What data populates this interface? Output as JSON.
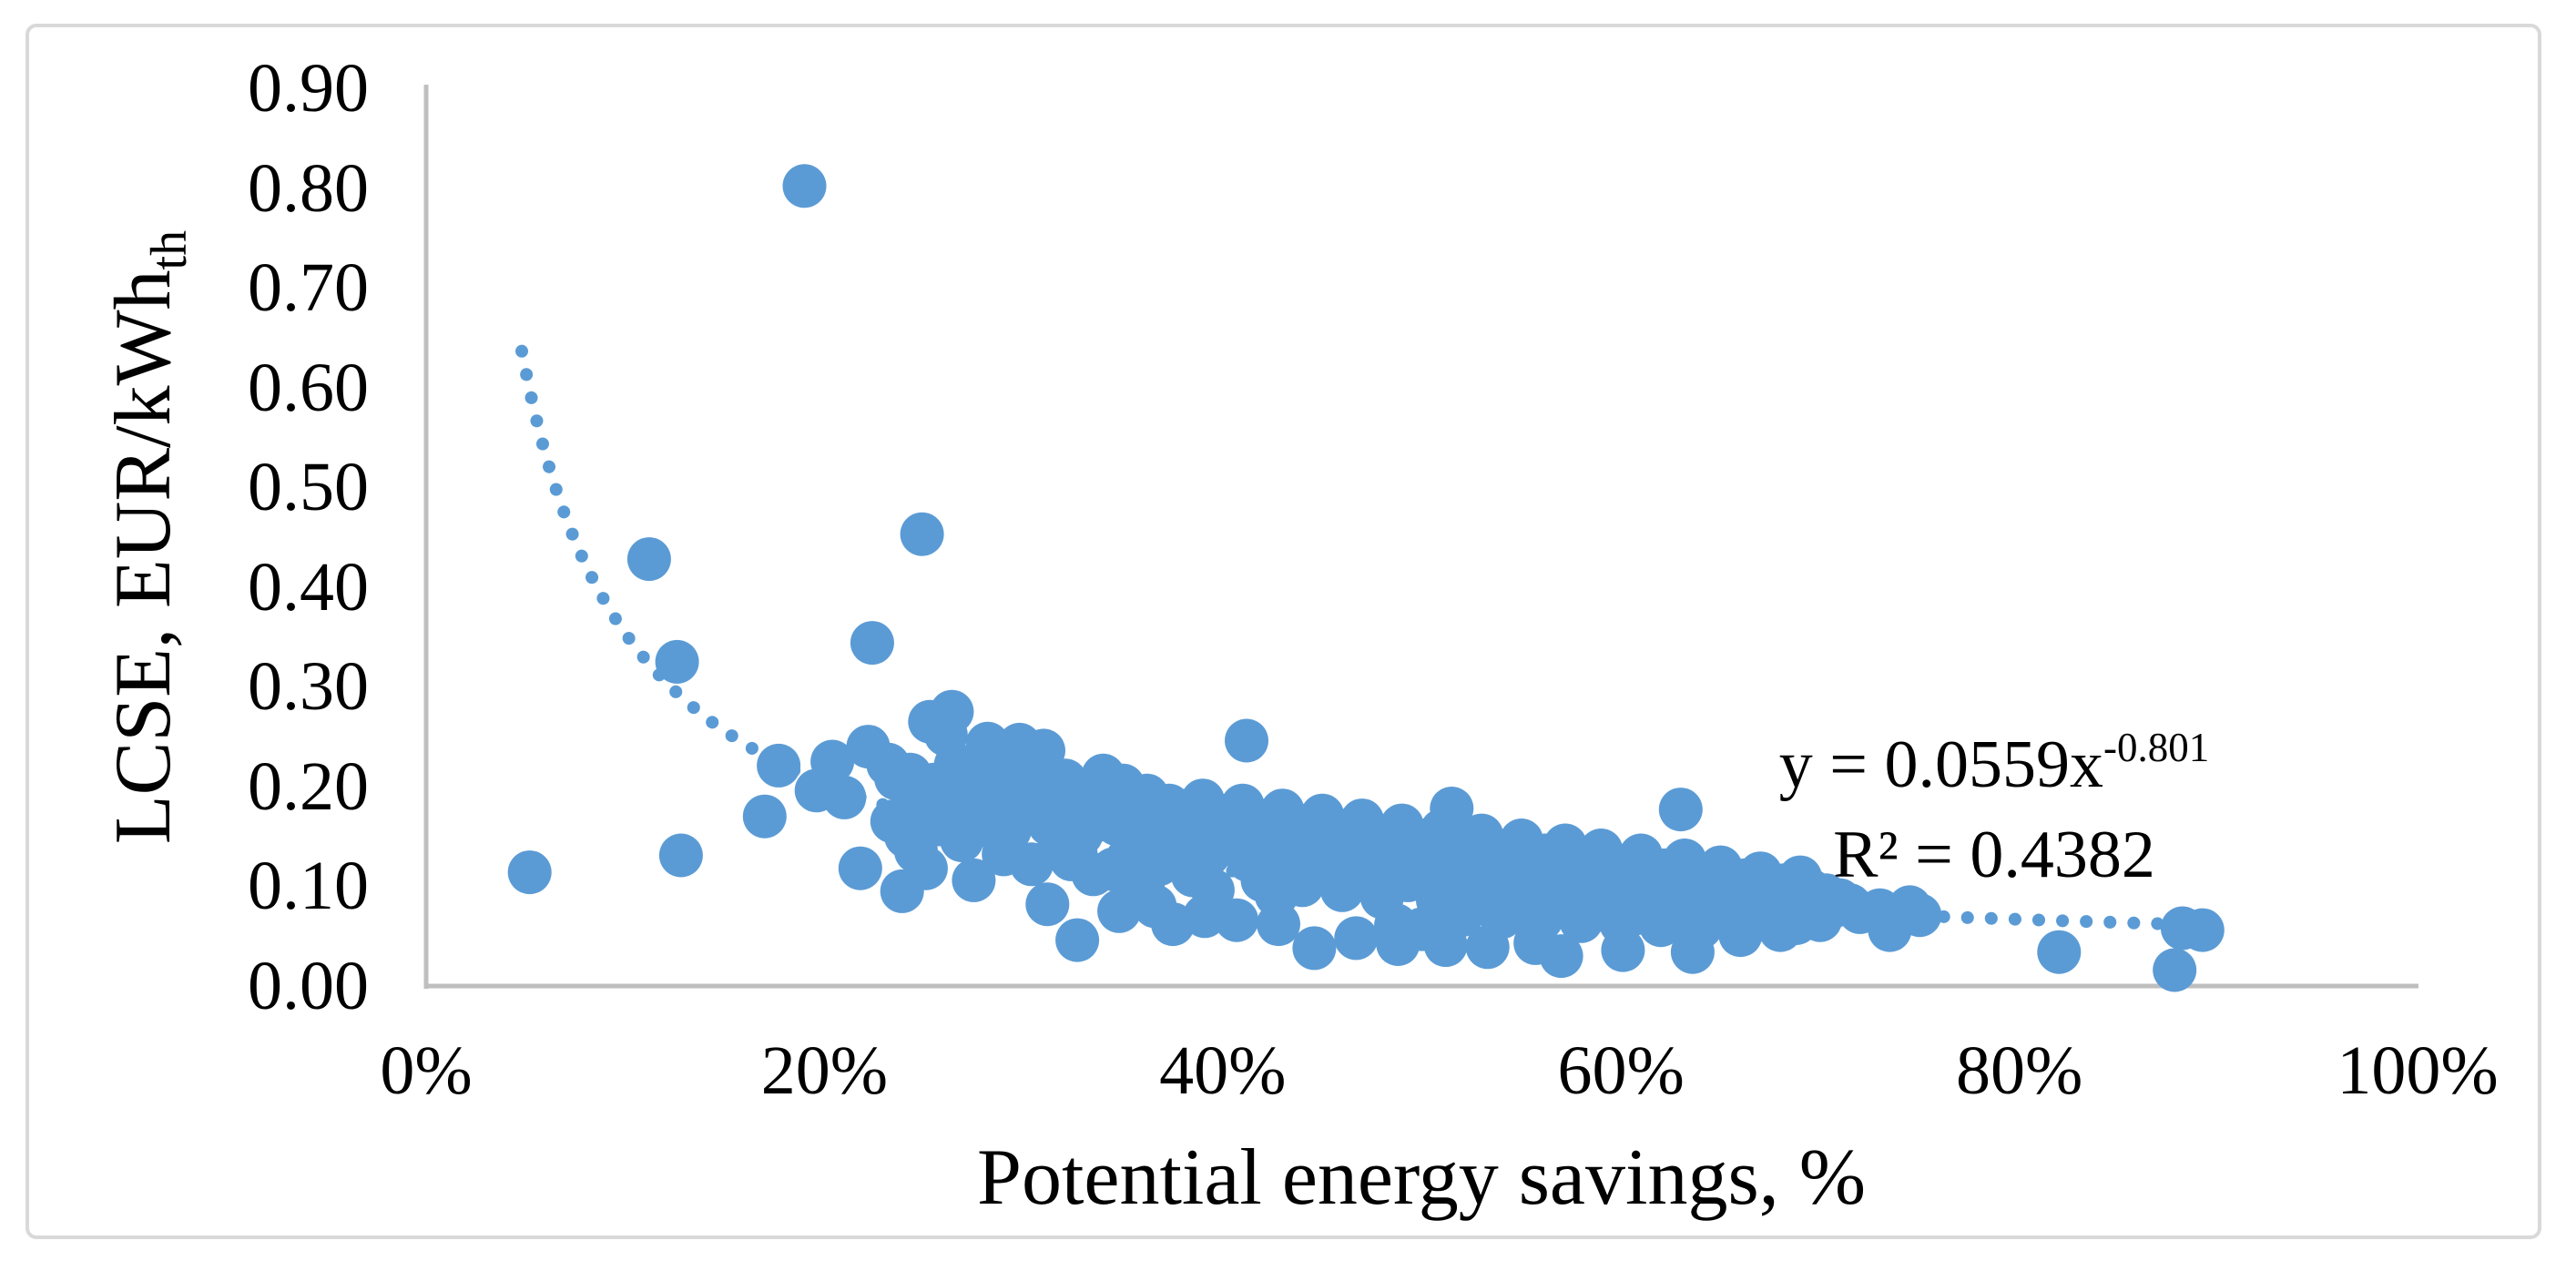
{
  "chart_data": {
    "type": "scatter",
    "title": "",
    "xlabel": "Potential energy savings, %",
    "ylabel": "LCSE, EUR/kWh_th",
    "ylabel_main": "LCSE, EUR/kWh",
    "ylabel_subscript": "th",
    "xlim": [
      0,
      100
    ],
    "ylim": [
      0.0,
      0.9
    ],
    "grid": false,
    "legend": "none",
    "x_tick_labels": [
      "0%",
      "20%",
      "40%",
      "60%",
      "80%",
      "100%"
    ],
    "x_tick_values": [
      0,
      20,
      40,
      60,
      80,
      100
    ],
    "y_tick_labels": [
      "0.00",
      "0.10",
      "0.20",
      "0.30",
      "0.40",
      "0.50",
      "0.60",
      "0.70",
      "0.80",
      "0.90"
    ],
    "y_tick_values": [
      0.0,
      0.1,
      0.2,
      0.3,
      0.4,
      0.5,
      0.6,
      0.7,
      0.8,
      0.9
    ],
    "annotation": {
      "equation_base": "y = 0.0559x",
      "equation_exponent": "-0.801",
      "r_squared_text": "R² = 0.4382"
    },
    "trendline": {
      "type": "power",
      "coefficient": 0.0559,
      "exponent": -0.801,
      "r_squared": 0.4382,
      "x_start_pct": 4.8,
      "x_end_pct": 88.0,
      "style": "dotted"
    },
    "points": [
      [
        5.2,
        0.114
      ],
      [
        11.2,
        0.428
      ],
      [
        12.6,
        0.325
      ],
      [
        12.8,
        0.131
      ],
      [
        17.0,
        0.17
      ],
      [
        17.7,
        0.221
      ],
      [
        19.0,
        0.802
      ],
      [
        19.6,
        0.196
      ],
      [
        20.4,
        0.225
      ],
      [
        21.0,
        0.189
      ],
      [
        21.8,
        0.118
      ],
      [
        22.2,
        0.24
      ],
      [
        22.4,
        0.344
      ],
      [
        23.2,
        0.222
      ],
      [
        23.4,
        0.165
      ],
      [
        23.6,
        0.208
      ],
      [
        23.9,
        0.095
      ],
      [
        24.1,
        0.15
      ],
      [
        24.3,
        0.212
      ],
      [
        24.6,
        0.135
      ],
      [
        24.7,
        0.182
      ],
      [
        24.9,
        0.453
      ],
      [
        25.0,
        0.175
      ],
      [
        25.1,
        0.118
      ],
      [
        25.3,
        0.265
      ],
      [
        25.5,
        0.202
      ],
      [
        25.7,
        0.162
      ],
      [
        25.9,
        0.185
      ],
      [
        26.1,
        0.252
      ],
      [
        26.3,
        0.16
      ],
      [
        26.4,
        0.275
      ],
      [
        26.6,
        0.222
      ],
      [
        26.9,
        0.146
      ],
      [
        27.0,
        0.17
      ],
      [
        27.2,
        0.192
      ],
      [
        27.5,
        0.106
      ],
      [
        27.7,
        0.212
      ],
      [
        27.9,
        0.195
      ],
      [
        28.0,
        0.168
      ],
      [
        28.2,
        0.243
      ],
      [
        28.5,
        0.206
      ],
      [
        28.7,
        0.155
      ],
      [
        28.8,
        0.177
      ],
      [
        29.0,
        0.132
      ],
      [
        29.3,
        0.156
      ],
      [
        29.5,
        0.175
      ],
      [
        29.6,
        0.221
      ],
      [
        29.8,
        0.242
      ],
      [
        29.9,
        0.192
      ],
      [
        30.2,
        0.212
      ],
      [
        30.4,
        0.122
      ],
      [
        30.7,
        0.182
      ],
      [
        31.0,
        0.236
      ],
      [
        31.2,
        0.082
      ],
      [
        31.3,
        0.162
      ],
      [
        31.5,
        0.197
      ],
      [
        31.8,
        0.142
      ],
      [
        32.1,
        0.206
      ],
      [
        32.4,
        0.127
      ],
      [
        32.6,
        0.176
      ],
      [
        32.7,
        0.046
      ],
      [
        32.9,
        0.152
      ],
      [
        33.2,
        0.191
      ],
      [
        33.5,
        0.112
      ],
      [
        33.7,
        0.166
      ],
      [
        34.0,
        0.211
      ],
      [
        34.2,
        0.186
      ],
      [
        34.5,
        0.117
      ],
      [
        34.7,
        0.162
      ],
      [
        34.8,
        0.075
      ],
      [
        35.0,
        0.201
      ],
      [
        35.2,
        0.127
      ],
      [
        35.5,
        0.142
      ],
      [
        35.8,
        0.176
      ],
      [
        36.0,
        0.097
      ],
      [
        36.2,
        0.191
      ],
      [
        36.5,
        0.167
      ],
      [
        36.6,
        0.08
      ],
      [
        36.8,
        0.122
      ],
      [
        37.0,
        0.146
      ],
      [
        37.3,
        0.181
      ],
      [
        37.5,
        0.062
      ],
      [
        37.7,
        0.157
      ],
      [
        38.0,
        0.136
      ],
      [
        38.2,
        0.176
      ],
      [
        38.5,
        0.111
      ],
      [
        38.7,
        0.151
      ],
      [
        39.0,
        0.186
      ],
      [
        39.1,
        0.07
      ],
      [
        39.3,
        0.132
      ],
      [
        39.5,
        0.096
      ],
      [
        39.7,
        0.161
      ],
      [
        40.0,
        0.143
      ],
      [
        40.2,
        0.171
      ],
      [
        40.5,
        0.146
      ],
      [
        40.7,
        0.066
      ],
      [
        41.0,
        0.181
      ],
      [
        41.2,
        0.246
      ],
      [
        41.3,
        0.126
      ],
      [
        41.7,
        0.156
      ],
      [
        42.0,
        0.106
      ],
      [
        42.2,
        0.166
      ],
      [
        42.5,
        0.141
      ],
      [
        42.7,
        0.091
      ],
      [
        42.8,
        0.062
      ],
      [
        43.0,
        0.176
      ],
      [
        43.3,
        0.121
      ],
      [
        43.5,
        0.151
      ],
      [
        43.8,
        0.131
      ],
      [
        44.0,
        0.101
      ],
      [
        44.2,
        0.161
      ],
      [
        44.5,
        0.136
      ],
      [
        44.6,
        0.038
      ],
      [
        45.0,
        0.171
      ],
      [
        45.3,
        0.116
      ],
      [
        45.5,
        0.146
      ],
      [
        45.8,
        0.126
      ],
      [
        46.0,
        0.096
      ],
      [
        46.2,
        0.156
      ],
      [
        46.5,
        0.131
      ],
      [
        46.7,
        0.048
      ],
      [
        47.0,
        0.166
      ],
      [
        47.3,
        0.111
      ],
      [
        47.5,
        0.141
      ],
      [
        47.8,
        0.121
      ],
      [
        48.0,
        0.089
      ],
      [
        48.2,
        0.151
      ],
      [
        48.5,
        0.126
      ],
      [
        48.7,
        0.061
      ],
      [
        48.8,
        0.042
      ],
      [
        49.0,
        0.161
      ],
      [
        49.3,
        0.106
      ],
      [
        49.5,
        0.136
      ],
      [
        49.8,
        0.116
      ],
      [
        50.0,
        0.057
      ],
      [
        50.2,
        0.146
      ],
      [
        50.5,
        0.121
      ],
      [
        50.8,
        0.086
      ],
      [
        51.0,
        0.156
      ],
      [
        51.2,
        0.041
      ],
      [
        51.3,
        0.101
      ],
      [
        51.5,
        0.178
      ],
      [
        51.8,
        0.132
      ],
      [
        52.0,
        0.071
      ],
      [
        52.2,
        0.141
      ],
      [
        52.5,
        0.116
      ],
      [
        52.8,
        0.083
      ],
      [
        53.0,
        0.151
      ],
      [
        53.3,
        0.039
      ],
      [
        53.4,
        0.099
      ],
      [
        53.5,
        0.128
      ],
      [
        53.8,
        0.111
      ],
      [
        54.0,
        0.069
      ],
      [
        54.2,
        0.136
      ],
      [
        54.5,
        0.113
      ],
      [
        54.8,
        0.081
      ],
      [
        55.0,
        0.146
      ],
      [
        55.3,
        0.096
      ],
      [
        55.5,
        0.126
      ],
      [
        55.7,
        0.043
      ],
      [
        55.8,
        0.109
      ],
      [
        56.0,
        0.067
      ],
      [
        56.2,
        0.131
      ],
      [
        56.5,
        0.108
      ],
      [
        56.8,
        0.079
      ],
      [
        57.0,
        0.03
      ],
      [
        57.2,
        0.141
      ],
      [
        57.5,
        0.093
      ],
      [
        57.8,
        0.121
      ],
      [
        58.0,
        0.065
      ],
      [
        58.2,
        0.126
      ],
      [
        58.5,
        0.106
      ],
      [
        58.8,
        0.076
      ],
      [
        59.0,
        0.136
      ],
      [
        59.3,
        0.091
      ],
      [
        59.5,
        0.116
      ],
      [
        59.8,
        0.101
      ],
      [
        60.0,
        0.063
      ],
      [
        60.1,
        0.036
      ],
      [
        60.2,
        0.121
      ],
      [
        60.5,
        0.101
      ],
      [
        60.8,
        0.073
      ],
      [
        61.0,
        0.131
      ],
      [
        61.3,
        0.089
      ],
      [
        61.5,
        0.113
      ],
      [
        61.8,
        0.099
      ],
      [
        62.0,
        0.061
      ],
      [
        62.2,
        0.116
      ],
      [
        62.5,
        0.098
      ],
      [
        62.8,
        0.071
      ],
      [
        63.0,
        0.177
      ],
      [
        63.2,
        0.126
      ],
      [
        63.5,
        0.086
      ],
      [
        63.6,
        0.034
      ],
      [
        63.8,
        0.109
      ],
      [
        64.0,
        0.059
      ],
      [
        64.2,
        0.111
      ],
      [
        64.5,
        0.096
      ],
      [
        64.8,
        0.069
      ],
      [
        65.0,
        0.119
      ],
      [
        65.3,
        0.083
      ],
      [
        65.5,
        0.106
      ],
      [
        65.8,
        0.093
      ],
      [
        66.0,
        0.051
      ],
      [
        66.2,
        0.106
      ],
      [
        66.5,
        0.091
      ],
      [
        66.8,
        0.066
      ],
      [
        67.0,
        0.113
      ],
      [
        67.3,
        0.079
      ],
      [
        67.5,
        0.101
      ],
      [
        67.8,
        0.089
      ],
      [
        68.0,
        0.056
      ],
      [
        68.2,
        0.101
      ],
      [
        68.5,
        0.089
      ],
      [
        68.8,
        0.063
      ],
      [
        69.0,
        0.109
      ],
      [
        69.3,
        0.076
      ],
      [
        69.5,
        0.096
      ],
      [
        69.8,
        0.086
      ],
      [
        70.0,
        0.066
      ],
      [
        70.3,
        0.091
      ],
      [
        70.6,
        0.079
      ],
      [
        71.0,
        0.086
      ],
      [
        71.5,
        0.081
      ],
      [
        72.0,
        0.074
      ],
      [
        73.0,
        0.076
      ],
      [
        73.5,
        0.056
      ],
      [
        74.5,
        0.079
      ],
      [
        75.0,
        0.071
      ],
      [
        82.0,
        0.034
      ],
      [
        87.8,
        0.016
      ],
      [
        88.2,
        0.058
      ],
      [
        89.2,
        0.056
      ]
    ]
  },
  "colors": {
    "marker": "#5B9BD5",
    "trendline": "#5B9BD5",
    "axis_line": "#BFBFBF",
    "frame_border": "#D9D9D9",
    "text": "#000000",
    "background": "#FFFFFF"
  }
}
